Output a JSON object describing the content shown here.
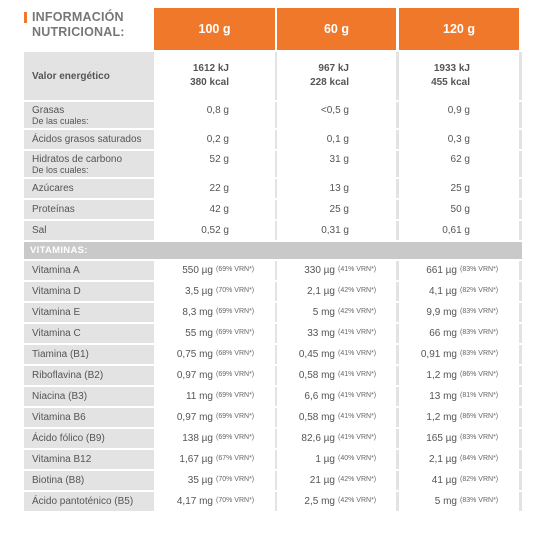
{
  "title": "INFORMACIÓN\nNUTRICIONAL:",
  "columns": [
    "100 g",
    "60 g",
    "120 g"
  ],
  "energy": {
    "label": "Valor energético",
    "kj": [
      "1612 kJ",
      "967 kJ",
      "1933 kJ"
    ],
    "kcal": [
      "380 kcal",
      "228 kcal",
      "455 kcal"
    ]
  },
  "nutrients": [
    {
      "label": "Grasas",
      "sub": "De las cuales:",
      "values": [
        "0,8 g",
        "<0,5 g",
        "0,9 g"
      ]
    },
    {
      "label": "Ácidos grasos saturados",
      "sub": "",
      "values": [
        "0,2 g",
        "0,1 g",
        "0,3 g"
      ]
    },
    {
      "label": "Hidratos de carbono",
      "sub": "De los cuales:",
      "values": [
        "52 g",
        "31 g",
        "62 g"
      ]
    },
    {
      "label": "Azúcares",
      "sub": "",
      "values": [
        "22 g",
        "13 g",
        "25 g"
      ]
    },
    {
      "label": "Proteínas",
      "sub": "",
      "values": [
        "42 g",
        "25 g",
        "50 g"
      ]
    },
    {
      "label": "Sal",
      "sub": "",
      "values": [
        "0,52 g",
        "0,31 g",
        "0,61 g"
      ]
    }
  ],
  "vitamins_header": "VITAMINAS:",
  "vitamins": [
    {
      "label": "Vitamina A",
      "values": [
        [
          "550 µg",
          "(69% VRN*)"
        ],
        [
          "330 µg",
          "(41% VRN*)"
        ],
        [
          "661 µg",
          "(83% VRN*)"
        ]
      ]
    },
    {
      "label": "Vitamina D",
      "values": [
        [
          "3,5 µg",
          "(70% VRN*)"
        ],
        [
          "2,1 µg",
          "(42% VRN*)"
        ],
        [
          "4,1 µg",
          "(82% VRN*)"
        ]
      ]
    },
    {
      "label": "Vitamina E",
      "values": [
        [
          "8,3 mg",
          "(69% VRN*)"
        ],
        [
          "5 mg",
          "(42% VRN*)"
        ],
        [
          "9,9 mg",
          "(83% VRN*)"
        ]
      ]
    },
    {
      "label": "Vitamina C",
      "values": [
        [
          "55 mg",
          "(69% VRN*)"
        ],
        [
          "33 mg",
          "(41% VRN*)"
        ],
        [
          "66 mg",
          "(83% VRN*)"
        ]
      ]
    },
    {
      "label": "Tiamina (B1)",
      "values": [
        [
          "0,75 mg",
          "(68% VRN*)"
        ],
        [
          "0,45 mg",
          "(41% VRN*)"
        ],
        [
          "0,91 mg",
          "(83% VRN*)"
        ]
      ]
    },
    {
      "label": "Riboflavina (B2)",
      "values": [
        [
          "0,97 mg",
          "(69% VRN*)"
        ],
        [
          "0,58 mg",
          "(41% VRN*)"
        ],
        [
          "1,2 mg",
          "(86% VRN*)"
        ]
      ]
    },
    {
      "label": "Niacina (B3)",
      "values": [
        [
          "11 mg",
          "(69% VRN*)"
        ],
        [
          "6,6 mg",
          "(41% VRN*)"
        ],
        [
          "13 mg",
          "(81% VRN*)"
        ]
      ]
    },
    {
      "label": "Vitamina B6",
      "values": [
        [
          "0,97 mg",
          "(69% VRN*)"
        ],
        [
          "0,58 mg",
          "(41% VRN*)"
        ],
        [
          "1,2 mg",
          "(86% VRN*)"
        ]
      ]
    },
    {
      "label": "Ácido fólico (B9)",
      "values": [
        [
          "138 µg",
          "(69% VRN*)"
        ],
        [
          "82,6 µg",
          "(41% VRN*)"
        ],
        [
          "165 µg",
          "(83% VRN*)"
        ]
      ]
    },
    {
      "label": "Vitamina B12",
      "values": [
        [
          "1,67 µg",
          "(67% VRN*)"
        ],
        [
          "1 µg",
          "(40% VRN*)"
        ],
        [
          "2,1 µg",
          "(84% VRN*)"
        ]
      ]
    },
    {
      "label": "Biotina (B8)",
      "values": [
        [
          "35 µg",
          "(70% VRN*)"
        ],
        [
          "21 µg",
          "(42% VRN*)"
        ],
        [
          "41 µg",
          "(82% VRN*)"
        ]
      ]
    },
    {
      "label": "Ácido pantoténico (B5)",
      "values": [
        [
          "4,17 mg",
          "(70% VRN*)"
        ],
        [
          "2,5 mg",
          "(42% VRN*)"
        ],
        [
          "5 mg",
          "(83% VRN*)"
        ]
      ]
    }
  ],
  "colors": {
    "accent": "#f0782a",
    "row_bg": "#e3e3e3",
    "vit_head_bg": "#c9c9c9"
  }
}
